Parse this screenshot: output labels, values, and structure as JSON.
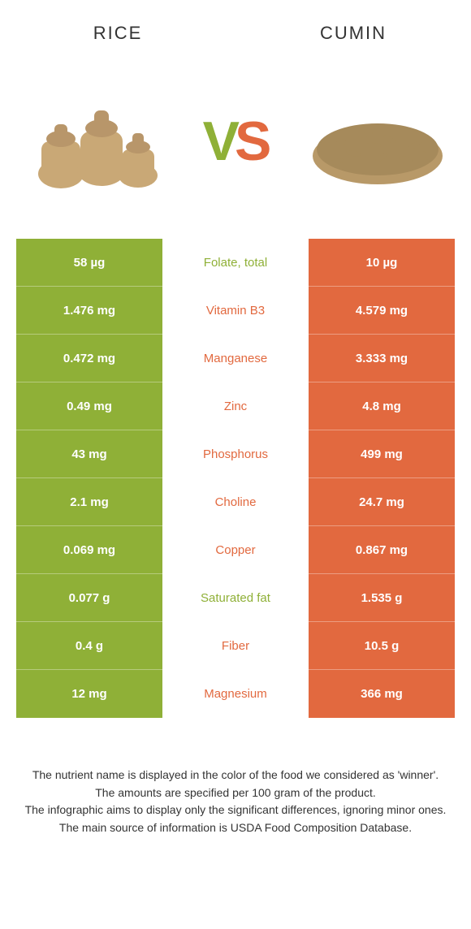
{
  "colors": {
    "left_bg": "#8fb037",
    "right_bg": "#e2693f",
    "left_text": "#8fb037",
    "right_text": "#e2693f",
    "page_bg": "#ffffff",
    "white": "#ffffff"
  },
  "header": {
    "left_title": "RICE",
    "right_title": "CUMIN"
  },
  "vs": {
    "v": "V",
    "s": "S"
  },
  "rows": [
    {
      "left": "58 µg",
      "nutrient": "Folate, total",
      "winner": "left",
      "right": "10 µg"
    },
    {
      "left": "1.476 mg",
      "nutrient": "Vitamin B3",
      "winner": "right",
      "right": "4.579 mg"
    },
    {
      "left": "0.472 mg",
      "nutrient": "Manganese",
      "winner": "right",
      "right": "3.333 mg"
    },
    {
      "left": "0.49 mg",
      "nutrient": "Zinc",
      "winner": "right",
      "right": "4.8 mg"
    },
    {
      "left": "43 mg",
      "nutrient": "Phosphorus",
      "winner": "right",
      "right": "499 mg"
    },
    {
      "left": "2.1 mg",
      "nutrient": "Choline",
      "winner": "right",
      "right": "24.7 mg"
    },
    {
      "left": "0.069 mg",
      "nutrient": "Copper",
      "winner": "right",
      "right": "0.867 mg"
    },
    {
      "left": "0.077 g",
      "nutrient": "Saturated fat",
      "winner": "left",
      "right": "1.535 g"
    },
    {
      "left": "0.4 g",
      "nutrient": "Fiber",
      "winner": "right",
      "right": "10.5 g"
    },
    {
      "left": "12 mg",
      "nutrient": "Magnesium",
      "winner": "right",
      "right": "366 mg"
    }
  ],
  "footnotes": [
    "The nutrient name is displayed in the color of the food we considered as 'winner'.",
    "The amounts are specified per 100 gram of the product.",
    "The infographic aims to display only the significant differences, ignoring minor ones.",
    "The main source of information is USDA Food Composition Database."
  ]
}
